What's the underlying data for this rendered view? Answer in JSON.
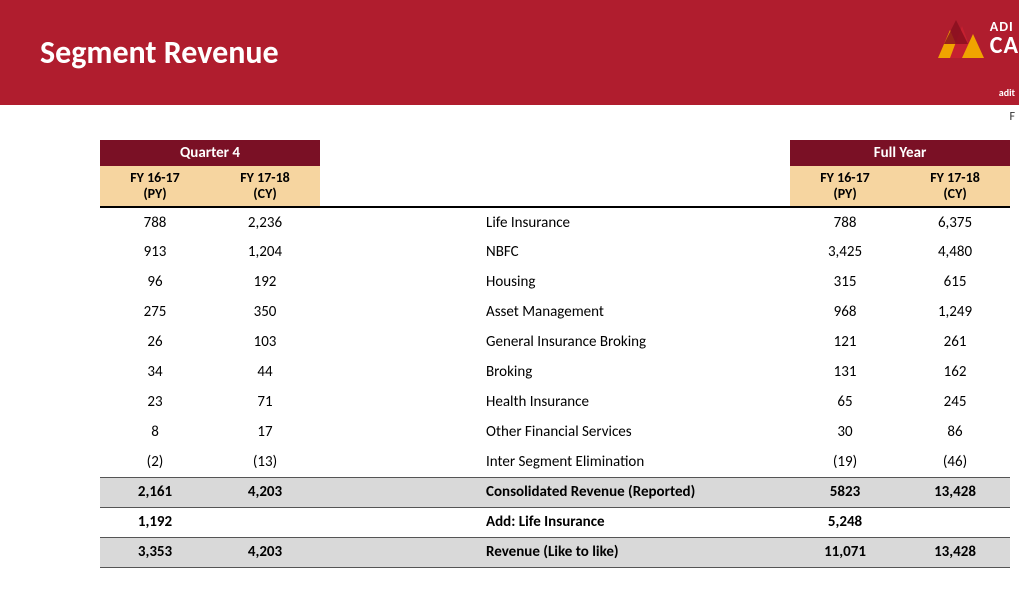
{
  "header": {
    "title": "Segment Revenue",
    "logo_top": "ADI",
    "logo_bottom": "CA",
    "sub_note": "adit",
    "corner_f": "F"
  },
  "colors": {
    "band": "#b01d2e",
    "group_header_bg": "#7a1025",
    "sub_header_bg": "#f6d5a0",
    "total_bg": "#d9d9d9",
    "logo_red": "#c52030",
    "logo_yellow": "#f0a400"
  },
  "table": {
    "group_headers": {
      "q4": "Quarter 4",
      "fy": "Full Year"
    },
    "sub_headers": {
      "q4_py": "FY 16-17\n(PY)",
      "q4_cy": "FY 17-18\n(CY)",
      "fy_py": "FY 16-17\n(PY)",
      "fy_cy": "FY 17-18\n(CY)"
    },
    "rows": [
      {
        "label": "Life Insurance",
        "q4_py": "788",
        "q4_cy": "2,236",
        "fy_py": "788",
        "fy_cy": "6,375"
      },
      {
        "label": "NBFC",
        "q4_py": "913",
        "q4_cy": "1,204",
        "fy_py": "3,425",
        "fy_cy": "4,480"
      },
      {
        "label": "Housing",
        "q4_py": "96",
        "q4_cy": "192",
        "fy_py": "315",
        "fy_cy": "615"
      },
      {
        "label": "Asset Management",
        "q4_py": "275",
        "q4_cy": "350",
        "fy_py": "968",
        "fy_cy": "1,249"
      },
      {
        "label": "General Insurance Broking",
        "q4_py": "26",
        "q4_cy": "103",
        "fy_py": "121",
        "fy_cy": "261"
      },
      {
        "label": "Broking",
        "q4_py": "34",
        "q4_cy": "44",
        "fy_py": "131",
        "fy_cy": "162"
      },
      {
        "label": "Health Insurance",
        "q4_py": "23",
        "q4_cy": "71",
        "fy_py": "65",
        "fy_cy": "245"
      },
      {
        "label": "Other Financial Services",
        "q4_py": "8",
        "q4_cy": "17",
        "fy_py": "30",
        "fy_cy": "86"
      },
      {
        "label": "Inter Segment Elimination",
        "q4_py": "(2)",
        "q4_cy": "(13)",
        "fy_py": "(19)",
        "fy_cy": "(46)"
      }
    ],
    "total1": {
      "label": "Consolidated Revenue (Reported)",
      "q4_py": "2,161",
      "q4_cy": "4,203",
      "fy_py": "5823",
      "fy_cy": "13,428"
    },
    "add": {
      "label": "Add: Life Insurance",
      "q4_py": "1,192",
      "q4_cy": "",
      "fy_py": "5,248",
      "fy_cy": ""
    },
    "total2": {
      "label": "Revenue (Like to like)",
      "q4_py": "3,353",
      "q4_cy": "4,203",
      "fy_py": "11,071",
      "fy_cy": "13,428"
    }
  }
}
